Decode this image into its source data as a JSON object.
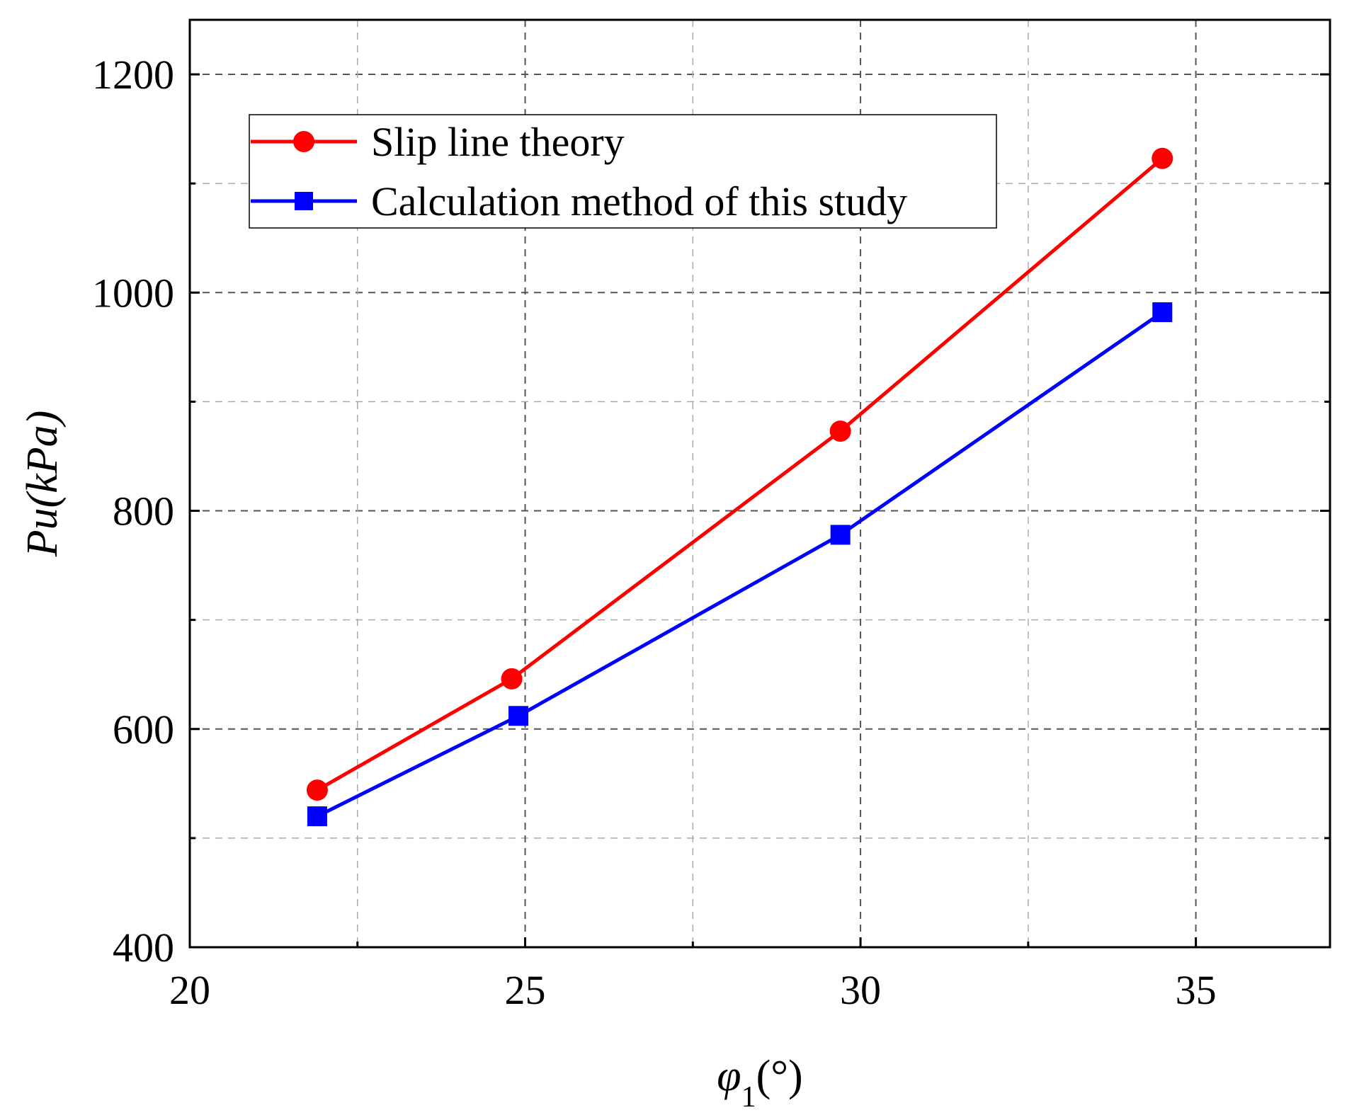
{
  "chart_data": {
    "type": "line",
    "title": "",
    "xlabel_symbol": "φ",
    "xlabel_subscript": "1",
    "xlabel_unit": "(°)",
    "ylabel_main": "Pu",
    "ylabel_unit": "(kPa)",
    "xlim": [
      20,
      37
    ],
    "ylim": [
      400,
      1250
    ],
    "x_ticks": [
      20,
      25,
      30,
      35
    ],
    "x_tick_labels": [
      "20",
      "25",
      "30",
      "35"
    ],
    "x_minor_ticks": [
      22.5,
      27.5,
      32.5
    ],
    "y_ticks": [
      400,
      600,
      800,
      1000,
      1200
    ],
    "y_tick_labels": [
      "400",
      "600",
      "800",
      "1000",
      "1200"
    ],
    "y_minor_ticks": [
      500,
      700,
      900,
      1100
    ],
    "grid": true,
    "legend_position": "top-left",
    "series": [
      {
        "name": "Slip line theory",
        "color": "#ff0000",
        "marker": "circle",
        "x": [
          21.9,
          24.8,
          29.7,
          34.5
        ],
        "values": [
          544,
          646,
          873,
          1123
        ]
      },
      {
        "name": "Calculation method of this study",
        "color": "#0000ff",
        "marker": "square",
        "x": [
          21.9,
          24.9,
          29.7,
          34.5
        ],
        "values": [
          520,
          612,
          778,
          982
        ]
      }
    ]
  }
}
